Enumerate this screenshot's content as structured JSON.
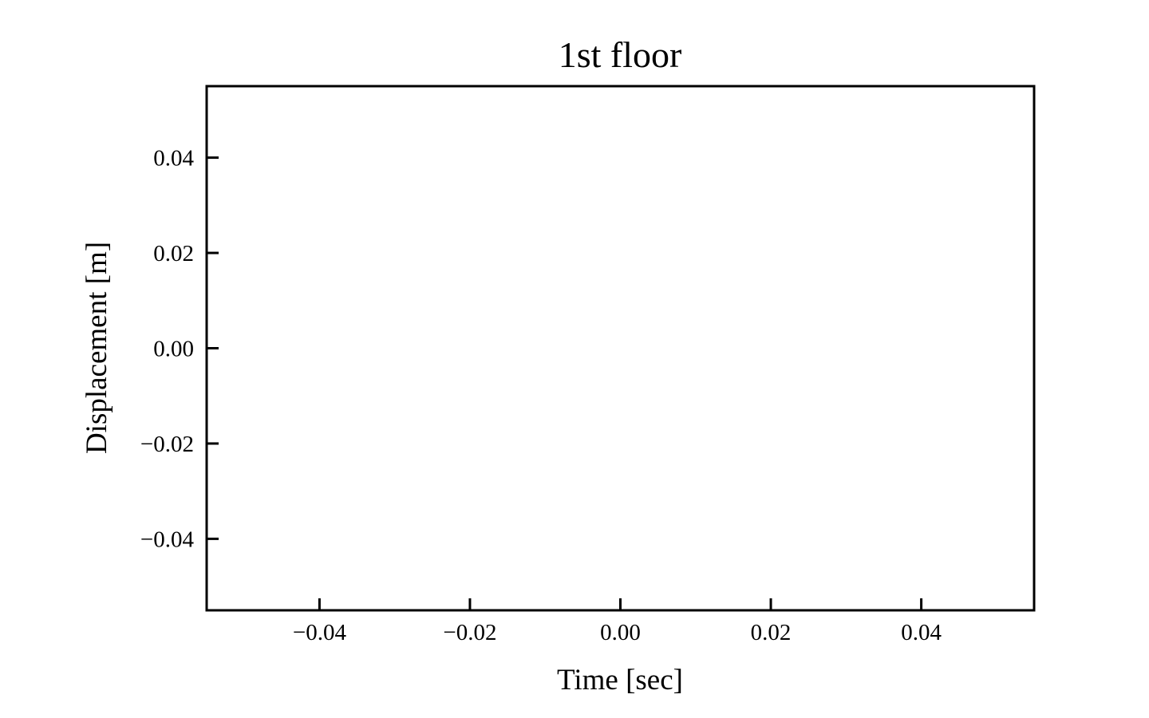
{
  "chart_data": {
    "type": "line",
    "title": "1st floor",
    "xlabel": "Time [sec]",
    "ylabel": "Displacement [m]",
    "xlim": [
      -0.055,
      0.055
    ],
    "ylim": [
      -0.055,
      0.055
    ],
    "x_ticks": [
      -0.04,
      -0.02,
      0.0,
      0.02,
      0.04
    ],
    "x_tick_labels": [
      "−0.04",
      "−0.02",
      "0.00",
      "0.02",
      "0.04"
    ],
    "y_ticks": [
      0.04,
      0.02,
      0.0,
      -0.02,
      -0.04
    ],
    "y_tick_labels": [
      "0.04",
      "0.02",
      "0.00",
      "−0.02",
      "−0.04"
    ],
    "grid": false,
    "legend": "none",
    "series": [],
    "colors": {
      "axes": "#000000",
      "background": "#ffffff"
    }
  }
}
